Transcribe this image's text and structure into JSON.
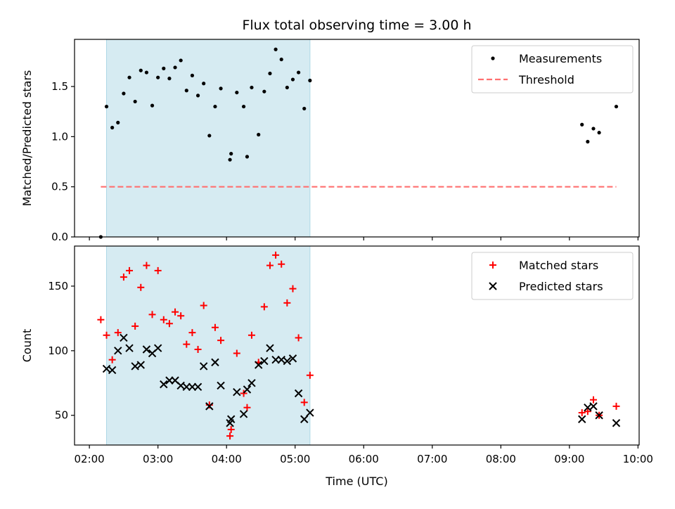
{
  "chart_data": [
    {
      "type": "scatter",
      "title": "Flux total observing time = 3.00 h",
      "xlabel": "",
      "ylabel": "Matched/Predicted stars",
      "x_is_time": true,
      "xlim": [
        "01:47",
        "10:01"
      ],
      "ylim": [
        0,
        1.97
      ],
      "yticks": [
        "0.0",
        "0.5",
        "1.0",
        "1.5"
      ],
      "ytick_values": [
        0,
        0.5,
        1.0,
        1.5
      ],
      "shaded_interval": [
        "02:15",
        "05:13"
      ],
      "legend": {
        "placement": "top-right",
        "entries": [
          "Measurements",
          "Threshold"
        ]
      },
      "colors": {
        "measurements": "#000000",
        "threshold": "#ff7070",
        "shade": "#add8e6"
      },
      "series": [
        {
          "name": "Measurements",
          "marker": "dot",
          "points": [
            [
              "02:10",
              0.0
            ],
            [
              "02:15",
              1.3
            ],
            [
              "02:20",
              1.09
            ],
            [
              "02:25",
              1.14
            ],
            [
              "02:30",
              1.43
            ],
            [
              "02:35",
              1.59
            ],
            [
              "02:40",
              1.35
            ],
            [
              "02:45",
              1.66
            ],
            [
              "02:50",
              1.64
            ],
            [
              "02:55",
              1.31
            ],
            [
              "03:00",
              1.59
            ],
            [
              "03:05",
              1.68
            ],
            [
              "03:10",
              1.58
            ],
            [
              "03:15",
              1.69
            ],
            [
              "03:20",
              1.76
            ],
            [
              "03:25",
              1.46
            ],
            [
              "03:30",
              1.61
            ],
            [
              "03:35",
              1.41
            ],
            [
              "03:40",
              1.53
            ],
            [
              "03:45",
              1.01
            ],
            [
              "03:50",
              1.3
            ],
            [
              "03:55",
              1.48
            ],
            [
              "04:03",
              0.77
            ],
            [
              "04:04",
              0.83
            ],
            [
              "04:09",
              1.44
            ],
            [
              "04:15",
              1.3
            ],
            [
              "04:18",
              0.8
            ],
            [
              "04:22",
              1.49
            ],
            [
              "04:28",
              1.02
            ],
            [
              "04:33",
              1.45
            ],
            [
              "04:38",
              1.63
            ],
            [
              "04:43",
              1.87
            ],
            [
              "04:48",
              1.77
            ],
            [
              "04:53",
              1.49
            ],
            [
              "04:58",
              1.57
            ],
            [
              "05:03",
              1.64
            ],
            [
              "05:08",
              1.28
            ],
            [
              "05:13",
              1.56
            ],
            [
              "09:11",
              1.12
            ],
            [
              "09:16",
              0.95
            ],
            [
              "09:21",
              1.08
            ],
            [
              "09:26",
              1.04
            ],
            [
              "09:41",
              1.3
            ]
          ]
        },
        {
          "name": "Threshold",
          "line": "dashed",
          "points": [
            [
              "02:10",
              0.5
            ],
            [
              "09:41",
              0.5
            ]
          ]
        }
      ]
    },
    {
      "type": "scatter",
      "title": "",
      "xlabel": "Time (UTC)",
      "ylabel": "Count",
      "x_is_time": true,
      "xlim": [
        "01:47",
        "10:01"
      ],
      "ylim": [
        27,
        181
      ],
      "yticks": [
        "50",
        "100",
        "150"
      ],
      "ytick_values": [
        50,
        100,
        150
      ],
      "xticks": [
        "02:00",
        "03:00",
        "04:00",
        "05:00",
        "06:00",
        "07:00",
        "08:00",
        "09:00",
        "10:00"
      ],
      "shaded_interval": [
        "02:15",
        "05:13"
      ],
      "legend": {
        "placement": "top-right",
        "entries": [
          "Matched stars",
          "Predicted stars"
        ]
      },
      "colors": {
        "matched": "#ff0000",
        "predicted": "#000000",
        "shade": "#add8e6"
      },
      "series": [
        {
          "name": "Matched stars",
          "marker": "plus",
          "points": [
            [
              "02:10",
              124
            ],
            [
              "02:15",
              112
            ],
            [
              "02:20",
              93
            ],
            [
              "02:25",
              114
            ],
            [
              "02:30",
              157
            ],
            [
              "02:35",
              162
            ],
            [
              "02:40",
              119
            ],
            [
              "02:45",
              149
            ],
            [
              "02:50",
              166
            ],
            [
              "02:55",
              128
            ],
            [
              "03:00",
              162
            ],
            [
              "03:05",
              124
            ],
            [
              "03:10",
              121
            ],
            [
              "03:15",
              130
            ],
            [
              "03:20",
              127
            ],
            [
              "03:25",
              105
            ],
            [
              "03:30",
              114
            ],
            [
              "03:35",
              101
            ],
            [
              "03:40",
              135
            ],
            [
              "03:45",
              58
            ],
            [
              "03:50",
              118
            ],
            [
              "03:55",
              108
            ],
            [
              "04:03",
              34
            ],
            [
              "04:04",
              39
            ],
            [
              "04:09",
              98
            ],
            [
              "04:15",
              67
            ],
            [
              "04:18",
              56
            ],
            [
              "04:22",
              112
            ],
            [
              "04:28",
              91
            ],
            [
              "04:33",
              134
            ],
            [
              "04:38",
              166
            ],
            [
              "04:43",
              174
            ],
            [
              "04:48",
              167
            ],
            [
              "04:53",
              137
            ],
            [
              "04:58",
              148
            ],
            [
              "05:03",
              110
            ],
            [
              "05:08",
              60
            ],
            [
              "05:13",
              81
            ],
            [
              "09:11",
              52
            ],
            [
              "09:16",
              53
            ],
            [
              "09:21",
              62
            ],
            [
              "09:26",
              50
            ],
            [
              "09:41",
              57
            ]
          ]
        },
        {
          "name": "Predicted stars",
          "marker": "x",
          "points": [
            [
              "02:15",
              86
            ],
            [
              "02:20",
              85
            ],
            [
              "02:25",
              100
            ],
            [
              "02:30",
              110
            ],
            [
              "02:35",
              102
            ],
            [
              "02:40",
              88
            ],
            [
              "02:45",
              89
            ],
            [
              "02:50",
              101
            ],
            [
              "02:55",
              98
            ],
            [
              "03:00",
              102
            ],
            [
              "03:05",
              74
            ],
            [
              "03:10",
              77
            ],
            [
              "03:15",
              77
            ],
            [
              "03:20",
              73
            ],
            [
              "03:25",
              72
            ],
            [
              "03:30",
              72
            ],
            [
              "03:35",
              72
            ],
            [
              "03:40",
              88
            ],
            [
              "03:45",
              57
            ],
            [
              "03:50",
              91
            ],
            [
              "03:55",
              73
            ],
            [
              "04:03",
              44
            ],
            [
              "04:04",
              47
            ],
            [
              "04:09",
              68
            ],
            [
              "04:15",
              51
            ],
            [
              "04:18",
              70
            ],
            [
              "04:22",
              75
            ],
            [
              "04:28",
              89
            ],
            [
              "04:33",
              92
            ],
            [
              "04:38",
              102
            ],
            [
              "04:43",
              93
            ],
            [
              "04:48",
              93
            ],
            [
              "04:53",
              92
            ],
            [
              "04:58",
              94
            ],
            [
              "05:03",
              67
            ],
            [
              "05:08",
              47
            ],
            [
              "05:13",
              52
            ],
            [
              "09:11",
              47
            ],
            [
              "09:16",
              56
            ],
            [
              "09:21",
              57
            ],
            [
              "09:26",
              50
            ],
            [
              "09:41",
              44
            ]
          ]
        }
      ]
    }
  ]
}
